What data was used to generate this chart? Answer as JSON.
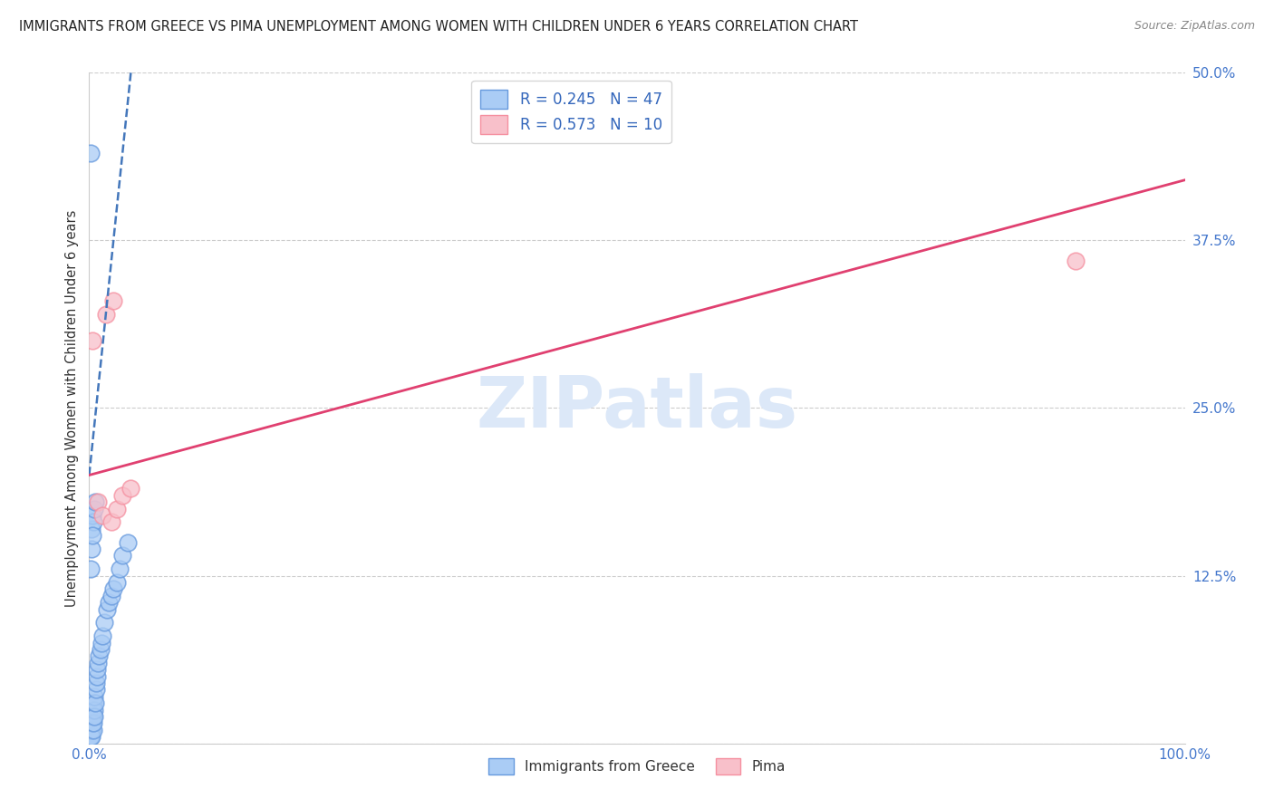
{
  "title": "IMMIGRANTS FROM GREECE VS PIMA UNEMPLOYMENT AMONG WOMEN WITH CHILDREN UNDER 6 YEARS CORRELATION CHART",
  "source": "Source: ZipAtlas.com",
  "ylabel": "Unemployment Among Women with Children Under 6 years",
  "legend_entry1_r": "R = 0.245",
  "legend_entry1_n": "N = 47",
  "legend_entry2_r": "R = 0.573",
  "legend_entry2_n": "N = 10",
  "legend_label1": "Immigrants from Greece",
  "legend_label2": "Pima",
  "blue_scatter_x": [
    0.05,
    0.08,
    0.1,
    0.12,
    0.15,
    0.18,
    0.2,
    0.22,
    0.25,
    0.28,
    0.3,
    0.32,
    0.35,
    0.38,
    0.4,
    0.42,
    0.45,
    0.48,
    0.5,
    0.55,
    0.6,
    0.65,
    0.7,
    0.75,
    0.8,
    0.9,
    1.0,
    1.1,
    1.2,
    1.4,
    1.6,
    1.8,
    2.0,
    2.2,
    2.5,
    2.8,
    3.0,
    3.5,
    0.1,
    0.2,
    0.3,
    0.15,
    0.25,
    0.35,
    0.45,
    0.55,
    0.3
  ],
  "blue_scatter_y": [
    2.0,
    1.5,
    1.0,
    0.5,
    0.5,
    1.0,
    1.5,
    1.0,
    0.5,
    2.0,
    2.5,
    1.5,
    1.0,
    2.0,
    3.0,
    1.5,
    2.5,
    2.0,
    3.5,
    3.0,
    4.0,
    4.5,
    5.0,
    5.5,
    6.0,
    6.5,
    7.0,
    7.5,
    8.0,
    9.0,
    10.0,
    10.5,
    11.0,
    11.5,
    12.0,
    13.0,
    14.0,
    15.0,
    44.0,
    16.0,
    17.0,
    13.0,
    14.5,
    16.5,
    17.5,
    18.0,
    15.5
  ],
  "pink_scatter_x": [
    0.3,
    1.5,
    2.2,
    0.8,
    1.2,
    2.0,
    2.5,
    3.0,
    3.8,
    90.0
  ],
  "pink_scatter_y": [
    30.0,
    32.0,
    33.0,
    18.0,
    17.0,
    16.5,
    17.5,
    18.5,
    19.0,
    36.0
  ],
  "blue_line_x": [
    0.0,
    3.8
  ],
  "blue_line_y": [
    20.0,
    50.0
  ],
  "pink_line_x": [
    0.0,
    100.0
  ],
  "pink_line_y": [
    20.0,
    42.0
  ],
  "xlim": [
    0.0,
    100.0
  ],
  "ylim": [
    0.0,
    50.0
  ],
  "yticks": [
    0.0,
    12.5,
    25.0,
    37.5,
    50.0
  ],
  "ytick_labels": [
    "",
    "12.5%",
    "25.0%",
    "37.5%",
    "50.0%"
  ],
  "xtick_vals": [
    0.0,
    100.0
  ],
  "xtick_labels": [
    "0.0%",
    "100.0%"
  ],
  "blue_dot_face": "#aaccf5",
  "blue_dot_edge": "#6699dd",
  "pink_dot_face": "#f8c0ca",
  "pink_dot_edge": "#f590a0",
  "blue_line_color": "#4477bb",
  "pink_line_color": "#e04070",
  "title_fontsize": 10.5,
  "source_fontsize": 9,
  "watermark": "ZIPatlas",
  "watermark_color": "#dce8f8",
  "background_color": "#ffffff",
  "grid_color": "#cccccc",
  "tick_color": "#4477cc",
  "axis_label_color": "#333333"
}
